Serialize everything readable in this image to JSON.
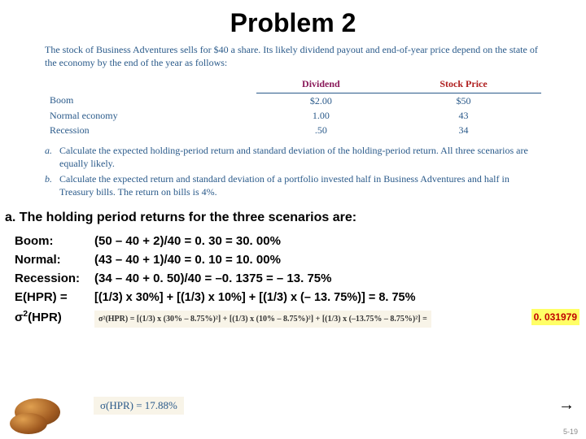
{
  "title": "Problem 2",
  "problem": {
    "intro": "The stock of Business Adventures sells for $40 a share. Its likely dividend payout and end-of-year price depend on the state of the economy by the end of the year as follows:",
    "table": {
      "headers": {
        "dividend": "Dividend",
        "stockprice": "Stock Price"
      },
      "rows": [
        {
          "scenario": "Boom",
          "dividend": "$2.00",
          "price": "$50"
        },
        {
          "scenario": "Normal economy",
          "dividend": "1.00",
          "price": "43"
        },
        {
          "scenario": "Recession",
          "dividend": ".50",
          "price": "34"
        }
      ]
    },
    "qa_label": "a.",
    "qa_text": "Calculate the expected holding-period return and standard deviation of the holding-period return. All three scenarios are equally likely.",
    "qb_label": "b.",
    "qb_text": "Calculate the expected return and standard deviation of a portfolio invested half in Business Adventures and half in Treasury bills. The return on bills is 4%."
  },
  "answer": {
    "heading": "a. The holding period returns for the three scenarios are:",
    "boom_label": "Boom:",
    "boom_calc": "(50 – 40 + 2)/40 = 0. 30 = 30. 00%",
    "normal_label": "Normal:",
    "normal_calc": "(43 – 40 + 1)/40 = 0. 10 = 10. 00%",
    "recession_label": "Recession:",
    "recession_calc": "(34 – 40 + 0. 50)/40 = –0. 1375 = – 13. 75%",
    "ehpr_label": "E(HPR) =",
    "ehpr_calc": "[(1/3) x 30%] + [(1/3) x 10%] + [(1/3) x (– 13. 75%)] = 8. 75%",
    "sigma2_label": "σ²(HPR)",
    "sigma2_formula": "σ²(HPR) = [(1/3) x (30% – 8.75%)²] + [(1/3) x (10% – 8.75%)²] + [(1/3) x (–13.75% – 8.75%)²] =",
    "sigma2_result": "0. 031979",
    "sigma_final": "σ(HPR) = 17.88%"
  },
  "footer": {
    "arrow": "→",
    "slide": "5-19"
  },
  "colors": {
    "problem_text": "#2a5a8a",
    "dividend_header": "#8a1a5a",
    "stockprice_header": "#b02020",
    "highlight_bg": "#ffff66",
    "highlight_text": "#c00000",
    "formula_bg": "#f8f4e8"
  }
}
